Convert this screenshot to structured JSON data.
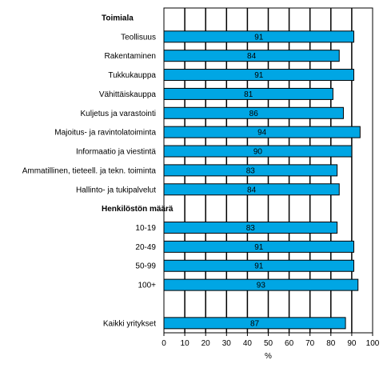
{
  "chart_data": {
    "type": "bar",
    "orientation": "horizontal",
    "title": "",
    "xlabel": "%",
    "ylabel": "",
    "xlim": [
      0,
      100
    ],
    "xticks": [
      "0",
      "10",
      "20",
      "30",
      "40",
      "50",
      "60",
      "70",
      "80",
      "90",
      "100"
    ],
    "grid": "vertical",
    "bar_color": "#00a6e4",
    "bar_edge_color": "#000000",
    "groups": [
      {
        "heading": "Toimiala",
        "categories": [
          "Teollisuus",
          "Rakentaminen",
          "Tukkukauppa",
          "Vähittäiskauppa",
          "Kuljetus ja varastointi",
          "Majoitus- ja ravintolatoiminta",
          "Informaatio ja viestintä",
          "Ammatillinen, tieteell. ja tekn. toiminta",
          "Hallinto- ja tukipalvelut"
        ],
        "values": [
          91,
          84,
          91,
          81,
          86,
          94,
          90,
          83,
          84
        ],
        "value_labels": [
          "91",
          "84",
          "91",
          "81",
          "86",
          "94",
          "90",
          "83",
          "84"
        ]
      },
      {
        "heading": "Henkilöstön määrä",
        "categories": [
          "10-19",
          "20-49",
          "50-99",
          "100+"
        ],
        "values": [
          83,
          91,
          91,
          93
        ],
        "value_labels": [
          "83",
          "91",
          "91",
          "93"
        ]
      },
      {
        "heading": "",
        "categories": [
          "Kaikki yritykset"
        ],
        "values": [
          87
        ],
        "value_labels": [
          "87"
        ]
      }
    ]
  }
}
